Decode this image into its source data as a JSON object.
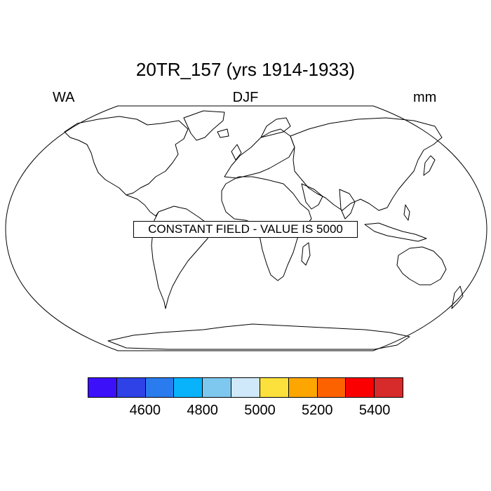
{
  "header": {
    "title": "20TR_157 (yrs 1914-1933)",
    "left_label": "WA",
    "center_label": "DJF",
    "right_label": "mm"
  },
  "map": {
    "projection": "Robinson",
    "coastline_color": "#000000",
    "message": "CONSTANT FIELD - VALUE IS 5000"
  },
  "colorbar": {
    "colors": [
      "#3d10fa",
      "#2e42e8",
      "#2a7cee",
      "#08b3fc",
      "#7ec8f0",
      "#cfe9fa",
      "#fce13c",
      "#fda600",
      "#fd6200",
      "#fb0000",
      "#d72a2a"
    ],
    "tick_labels": [
      "4600",
      "4800",
      "5000",
      "5200",
      "5400"
    ]
  }
}
